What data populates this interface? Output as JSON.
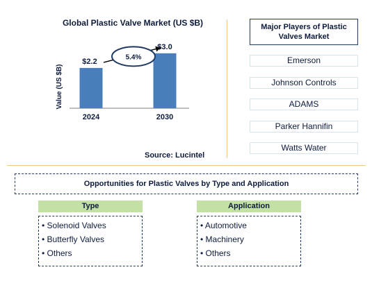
{
  "chart_data": {
    "type": "bar",
    "title": "Global Plastic Valve Market (US $B)",
    "ylabel": "Value (US $B)",
    "categories": [
      "2024",
      "2030"
    ],
    "values": [
      2.2,
      3.0
    ],
    "data_labels": [
      "$2.2",
      "$3.0"
    ],
    "bar_color": "#4a7ebb",
    "annotation": "5.4%"
  },
  "source": "Source: Lucintel",
  "players": {
    "title": "Major Players of Plastic Valves Market",
    "items": [
      "Emerson",
      "Johnson Controls",
      "ADAMS",
      "Parker Hannifin",
      "Watts Water"
    ]
  },
  "opportunities": {
    "title": "Opportunities for Plastic Valves by Type and Application",
    "type": {
      "header": "Type",
      "items": [
        "• Solenoid Valves",
        "• Butterfly Valves",
        "• Others"
      ]
    },
    "application": {
      "header": "Application",
      "items": [
        "• Automotive",
        "• Machinery",
        "• Others"
      ]
    },
    "header_color": "#c5e0a5"
  }
}
